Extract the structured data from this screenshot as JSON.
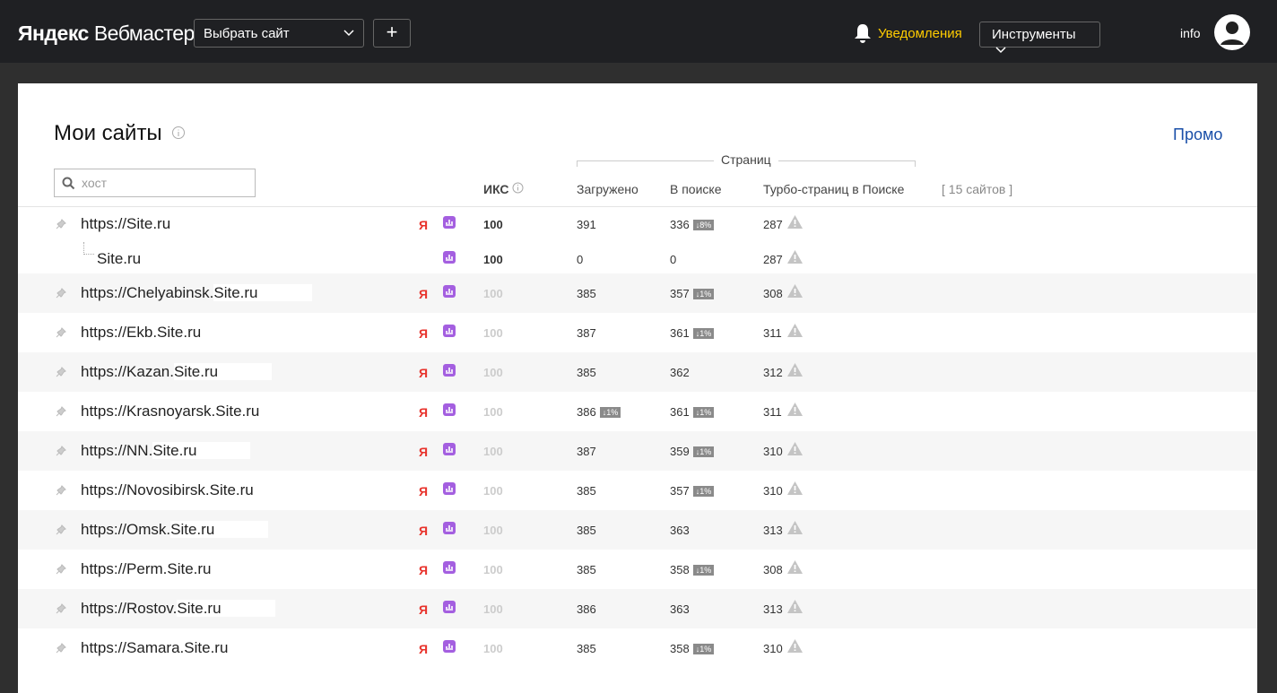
{
  "header": {
    "logo_brand": "Яндекс",
    "logo_product": "Вебмастер",
    "site_select": "Выбрать сайт",
    "add_button": "+",
    "notifications": "Уведомления",
    "tools": "Инструменты",
    "user": "info"
  },
  "main": {
    "title": "Мои сайты",
    "promo": "Промо",
    "search_placeholder": "хост",
    "yandex_icon": "Я",
    "columns": {
      "iks": "ИКС",
      "pages": "Страниц",
      "loaded": "Загружено",
      "in_search": "В поиске",
      "turbo": "Турбо-страниц в Поиске",
      "count": "[ 15 сайтов ]"
    },
    "rows": [
      {
        "prefix": "https://",
        "domain": "Site.ru",
        "iks": 100,
        "loaded": 391,
        "in_search": 336,
        "in_search_badge": "↓8%",
        "turbo": 287
      },
      {
        "domain": "Site.ru",
        "iks": 100,
        "loaded": 0,
        "in_search": 0,
        "turbo": 287
      },
      {
        "prefix": "https://Chelyabinsk.",
        "domain": "Site.ru",
        "iks": 100,
        "loaded": 385,
        "in_search": 357,
        "in_search_badge": "↓1%",
        "turbo": 308
      },
      {
        "prefix": "https://Ekb.",
        "domain": "Site.ru",
        "iks": 100,
        "loaded": 387,
        "in_search": 361,
        "in_search_badge": "↓1%",
        "turbo": 311
      },
      {
        "prefix": "https://Kazan.",
        "domain": "Site.ru",
        "iks": 100,
        "loaded": 385,
        "in_search": 362,
        "turbo": 312
      },
      {
        "prefix": "https://Krasnoyarsk.",
        "domain": "Site.ru",
        "iks": 100,
        "loaded": 386,
        "loaded_badge": "↓1%",
        "in_search": 361,
        "in_search_badge": "↓1%",
        "turbo": 311
      },
      {
        "prefix": "https://NN.",
        "domain": "Site.ru",
        "iks": 100,
        "loaded": 387,
        "in_search": 359,
        "in_search_badge": "↓1%",
        "turbo": 310
      },
      {
        "prefix": "https://Novosibirsk.",
        "domain": "Site.ru",
        "iks": 100,
        "loaded": 385,
        "in_search": 357,
        "in_search_badge": "↓1%",
        "turbo": 310
      },
      {
        "prefix": "https://Omsk.",
        "domain": "Site.ru",
        "iks": 100,
        "loaded": 385,
        "in_search": 363,
        "turbo": 313
      },
      {
        "prefix": "https://Perm.",
        "domain": "Site.ru",
        "iks": 100,
        "loaded": 385,
        "in_search": 358,
        "in_search_badge": "↓1%",
        "turbo": 308
      },
      {
        "prefix": "https://Rostov.",
        "domain": "Site.ru",
        "iks": 100,
        "loaded": 386,
        "in_search": 363,
        "turbo": 313
      },
      {
        "prefix": "https://Samara.",
        "domain": "Site.ru",
        "iks": 100,
        "loaded": 385,
        "in_search": 358,
        "in_search_badge": "↓1%",
        "turbo": 310
      }
    ]
  }
}
